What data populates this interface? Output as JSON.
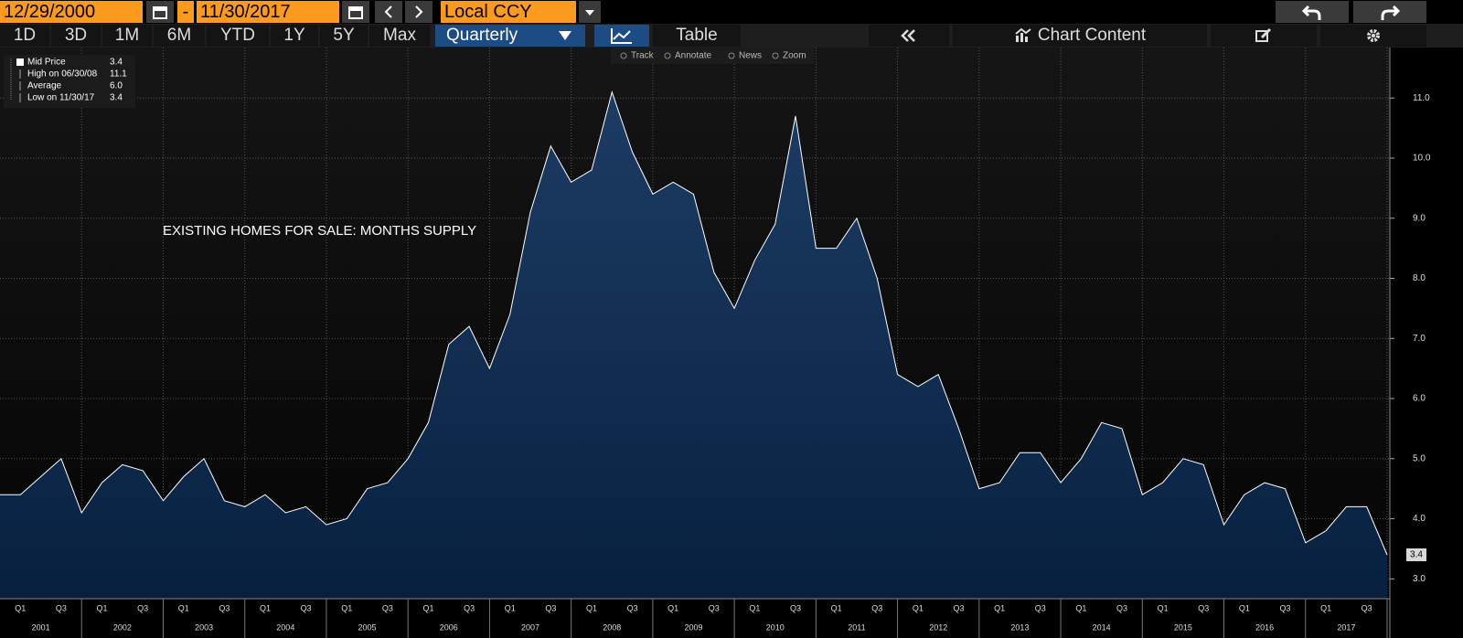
{
  "toolbar": {
    "start_date": "12/29/2000",
    "separator": "-",
    "end_date": "11/30/2017",
    "currency": "Local CCY"
  },
  "tabs": [
    "1D",
    "3D",
    "1M",
    "6M",
    "YTD",
    "1Y",
    "5Y",
    "Max"
  ],
  "frequency": "Quarterly",
  "table_button": "Table",
  "chart_content": "Chart Content",
  "chart_tools": [
    "Track",
    "Annotate",
    "News",
    "Zoom"
  ],
  "legend": [
    {
      "label": "Mid Price",
      "value": "3.4"
    },
    {
      "label": "High on 06/30/08",
      "value": "11.1"
    },
    {
      "label": "Average",
      "value": "6.0"
    },
    {
      "label": "Low on 11/30/17",
      "value": "3.4"
    }
  ],
  "chart_data": {
    "type": "area",
    "annotation": "EXISTING HOMES FOR SALE: MONTHS SUPPLY",
    "years": [
      "2001",
      "2002",
      "2003",
      "2004",
      "2005",
      "2006",
      "2007",
      "2008",
      "2009",
      "2010",
      "2011",
      "2012",
      "2013",
      "2014",
      "2015",
      "2016",
      "2017"
    ],
    "quarter_labels": [
      "Q1",
      "Q3"
    ],
    "series": [
      {
        "name": "Mid Price",
        "color": "#ffffff",
        "values": [
          4.4,
          4.4,
          4.7,
          5.0,
          4.1,
          4.6,
          4.9,
          4.8,
          4.3,
          4.7,
          5.0,
          4.3,
          4.2,
          4.4,
          4.1,
          4.2,
          3.9,
          4.0,
          4.5,
          4.6,
          5.0,
          5.6,
          6.9,
          7.2,
          6.5,
          7.4,
          9.1,
          10.2,
          9.6,
          9.8,
          11.1,
          10.1,
          9.4,
          9.6,
          9.4,
          8.1,
          7.5,
          8.3,
          8.9,
          10.7,
          8.5,
          8.5,
          9.0,
          8.0,
          6.4,
          6.2,
          6.4,
          5.5,
          4.5,
          4.6,
          5.1,
          5.1,
          4.6,
          5.0,
          5.6,
          5.5,
          4.4,
          4.6,
          5.0,
          4.9,
          3.9,
          4.4,
          4.6,
          4.5,
          3.6,
          3.8,
          4.2,
          4.2,
          3.4
        ]
      }
    ],
    "ylim": [
      2.67,
      11.84
    ],
    "yticks": [
      {
        "value": 3,
        "label": "3.0"
      },
      {
        "value": 4,
        "label": "4.0"
      },
      {
        "value": 5,
        "label": "5.0"
      },
      {
        "value": 6,
        "label": "6.0"
      },
      {
        "value": 7,
        "label": "7.0"
      },
      {
        "value": 8,
        "label": "8.0"
      },
      {
        "value": 9,
        "label": "9.0"
      },
      {
        "value": 10,
        "label": "10.0"
      },
      {
        "value": 11,
        "label": "11.0"
      }
    ],
    "grid": true
  }
}
